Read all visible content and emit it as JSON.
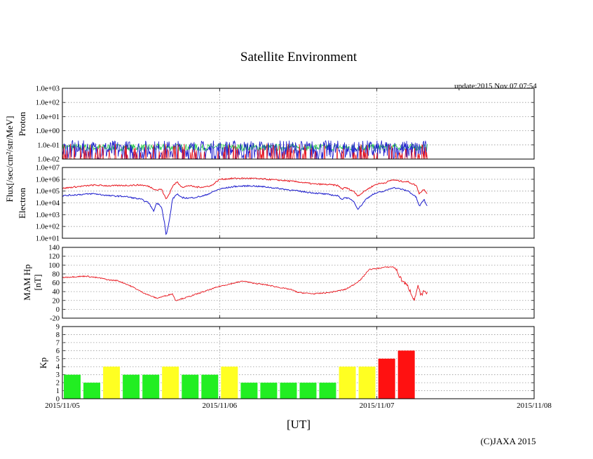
{
  "header": {
    "title": "Satellite Environment",
    "update": "update:2015 Nov 07 07:54"
  },
  "footer": {
    "x_axis_label": "[UT]",
    "copyright": "(C)JAXA 2015"
  },
  "y_axis_shared_label": "Flux[/sec/cm²/str/MeV]",
  "colors": {
    "red": "#e8141c",
    "blue": "#1a1acc",
    "green": "#22cc44",
    "kp_green": "#22ee22",
    "kp_yellow": "#ffff22",
    "kp_red": "#ff1111"
  },
  "chart_data": [
    {
      "type": "line",
      "name": "proton",
      "ylabel": "Proton",
      "yscale": "log",
      "ylim": [
        0.01,
        1000
      ],
      "ytick_labels": [
        "1.0e-02",
        "1.0e-01",
        "1.0e+00",
        "1.0e+01",
        "1.0e+02",
        "1.0e+03"
      ],
      "x_days": [
        0,
        1,
        2,
        3
      ],
      "x_tick_labels": [
        "2015/11/05",
        "2015/11/06",
        "2015/11/07",
        "2015/11/08"
      ],
      "data_end_day": 2.32,
      "series": [
        {
          "name": "green",
          "color": "#22cc44",
          "level": 0.07
        },
        {
          "name": "blue",
          "color": "#1a1acc",
          "level": 0.05
        },
        {
          "name": "red",
          "color": "#e8141c",
          "level": 0.02
        }
      ]
    },
    {
      "type": "line",
      "name": "electron",
      "ylabel": "Electron",
      "yscale": "log",
      "ylim": [
        10,
        10000000
      ],
      "ytick_labels": [
        "1.0e+01",
        "1.0e+02",
        "1.0e+03",
        "1.0e+04",
        "1.0e+05",
        "1.0e+06",
        "1.0e+07"
      ],
      "series": [
        {
          "name": "red",
          "color": "#e8141c",
          "points": [
            [
              0.0,
              170000
            ],
            [
              0.1,
              240000
            ],
            [
              0.2,
              320000
            ],
            [
              0.3,
              280000
            ],
            [
              0.4,
              300000
            ],
            [
              0.5,
              330000
            ],
            [
              0.55,
              250000
            ],
            [
              0.6,
              120000
            ],
            [
              0.63,
              150000
            ],
            [
              0.65,
              40000
            ],
            [
              0.66,
              20000
            ],
            [
              0.68,
              60000
            ],
            [
              0.7,
              250000
            ],
            [
              0.73,
              600000
            ],
            [
              0.75,
              300000
            ],
            [
              0.77,
              200000
            ],
            [
              0.8,
              300000
            ],
            [
              0.85,
              220000
            ],
            [
              0.9,
              220000
            ],
            [
              0.95,
              300000
            ],
            [
              1.0,
              1000000
            ],
            [
              1.1,
              1200000
            ],
            [
              1.2,
              1200000
            ],
            [
              1.3,
              1000000
            ],
            [
              1.4,
              800000
            ],
            [
              1.5,
              600000
            ],
            [
              1.6,
              400000
            ],
            [
              1.7,
              350000
            ],
            [
              1.75,
              300000
            ],
            [
              1.78,
              150000
            ],
            [
              1.8,
              200000
            ],
            [
              1.85,
              100000
            ],
            [
              1.88,
              40000
            ],
            [
              1.9,
              60000
            ],
            [
              1.93,
              120000
            ],
            [
              1.97,
              250000
            ],
            [
              2.0,
              400000
            ],
            [
              2.05,
              500000
            ],
            [
              2.1,
              900000
            ],
            [
              2.15,
              700000
            ],
            [
              2.2,
              600000
            ],
            [
              2.25,
              300000
            ],
            [
              2.27,
              60000
            ],
            [
              2.3,
              150000
            ],
            [
              2.32,
              60000
            ]
          ]
        },
        {
          "name": "blue",
          "color": "#1a1acc",
          "points": [
            [
              0.0,
              40000
            ],
            [
              0.1,
              50000
            ],
            [
              0.2,
              60000
            ],
            [
              0.3,
              40000
            ],
            [
              0.4,
              35000
            ],
            [
              0.5,
              20000
            ],
            [
              0.55,
              10000
            ],
            [
              0.58,
              2000
            ],
            [
              0.6,
              10000
            ],
            [
              0.63,
              5000
            ],
            [
              0.65,
              200
            ],
            [
              0.66,
              15
            ],
            [
              0.68,
              300
            ],
            [
              0.7,
              20000
            ],
            [
              0.73,
              60000
            ],
            [
              0.75,
              30000
            ],
            [
              0.8,
              25000
            ],
            [
              0.85,
              30000
            ],
            [
              0.9,
              40000
            ],
            [
              1.0,
              150000
            ],
            [
              1.1,
              250000
            ],
            [
              1.2,
              280000
            ],
            [
              1.3,
              220000
            ],
            [
              1.4,
              150000
            ],
            [
              1.5,
              100000
            ],
            [
              1.6,
              70000
            ],
            [
              1.7,
              50000
            ],
            [
              1.75,
              40000
            ],
            [
              1.78,
              20000
            ],
            [
              1.8,
              30000
            ],
            [
              1.85,
              15000
            ],
            [
              1.88,
              3000
            ],
            [
              1.9,
              6000
            ],
            [
              1.93,
              20000
            ],
            [
              1.97,
              50000
            ],
            [
              2.0,
              70000
            ],
            [
              2.05,
              100000
            ],
            [
              2.1,
              200000
            ],
            [
              2.15,
              150000
            ],
            [
              2.2,
              100000
            ],
            [
              2.25,
              30000
            ],
            [
              2.27,
              5000
            ],
            [
              2.3,
              20000
            ],
            [
              2.32,
              5000
            ]
          ]
        }
      ]
    },
    {
      "type": "line",
      "name": "mam_hp",
      "ylabel": "MAM Hp",
      "ylabel2": "[nT]",
      "ylim": [
        -20,
        140
      ],
      "ytick_labels": [
        "-20",
        "0",
        "20",
        "40",
        "60",
        "80",
        "100",
        "120",
        "140"
      ],
      "series": [
        {
          "name": "hp",
          "color": "#e8141c",
          "points": [
            [
              0.0,
              72
            ],
            [
              0.1,
              74
            ],
            [
              0.15,
              75
            ],
            [
              0.25,
              70
            ],
            [
              0.3,
              66
            ],
            [
              0.35,
              65
            ],
            [
              0.4,
              58
            ],
            [
              0.45,
              50
            ],
            [
              0.5,
              40
            ],
            [
              0.55,
              32
            ],
            [
              0.6,
              25
            ],
            [
              0.65,
              30
            ],
            [
              0.7,
              35
            ],
            [
              0.72,
              20
            ],
            [
              0.8,
              28
            ],
            [
              0.9,
              40
            ],
            [
              1.0,
              52
            ],
            [
              1.1,
              60
            ],
            [
              1.15,
              64
            ],
            [
              1.2,
              60
            ],
            [
              1.3,
              55
            ],
            [
              1.4,
              48
            ],
            [
              1.45,
              45
            ],
            [
              1.5,
              38
            ],
            [
              1.6,
              35
            ],
            [
              1.7,
              38
            ],
            [
              1.8,
              45
            ],
            [
              1.85,
              55
            ],
            [
              1.9,
              68
            ],
            [
              1.95,
              90
            ],
            [
              2.0,
              92
            ],
            [
              2.05,
              95
            ],
            [
              2.1,
              96
            ],
            [
              2.12,
              92
            ],
            [
              2.15,
              70
            ],
            [
              2.2,
              50
            ],
            [
              2.22,
              35
            ],
            [
              2.24,
              20
            ],
            [
              2.26,
              55
            ],
            [
              2.28,
              30
            ],
            [
              2.3,
              40
            ],
            [
              2.32,
              35
            ]
          ]
        }
      ]
    },
    {
      "type": "bar",
      "name": "kp",
      "ylabel": "Kp",
      "ylim": [
        0,
        9
      ],
      "ytick_labels": [
        "0",
        "1",
        "2",
        "3",
        "4",
        "5",
        "6",
        "7",
        "8",
        "9"
      ],
      "bar_width_days": 0.125,
      "values": [
        3,
        2,
        4,
        3,
        3,
        4,
        3,
        3,
        4,
        2,
        2,
        2,
        2,
        2,
        4,
        4,
        5,
        6
      ],
      "colors": [
        "green",
        "green",
        "yellow",
        "green",
        "green",
        "yellow",
        "green",
        "green",
        "yellow",
        "green",
        "green",
        "green",
        "green",
        "green",
        "yellow",
        "yellow",
        "red",
        "red"
      ]
    }
  ]
}
